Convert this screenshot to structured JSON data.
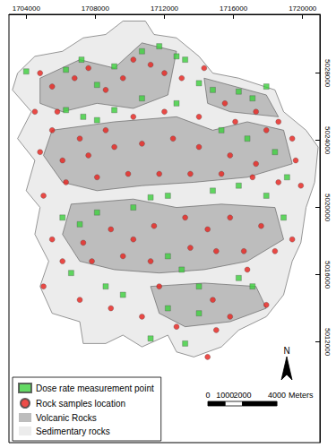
{
  "chart_data": {
    "type": "map",
    "xlim": [
      1703000,
      1721000
    ],
    "ylim": [
      5006000,
      5031500
    ],
    "xticks": [
      1704000,
      1708000,
      1712000,
      1716000,
      1720000
    ],
    "yticks": [
      5012000,
      5016000,
      5020000,
      5024000,
      5028000
    ],
    "grid": false,
    "legend": "bottom-left",
    "north_label": "N",
    "scale_bar": {
      "ticks": [
        0,
        1000,
        2000,
        4000
      ],
      "unit": "Meters"
    },
    "series": [
      {
        "name": "Sedimentary rocks",
        "type": "polygon",
        "color": "#ececec",
        "legend_order": 4,
        "polygons": [
          [
            [
              1703500,
              5028000
            ],
            [
              1704500,
              5029000
            ],
            [
              1706100,
              5029300
            ],
            [
              1707300,
              5030100
            ],
            [
              1708600,
              5030300
            ],
            [
              1709600,
              5031100
            ],
            [
              1710900,
              5031100
            ],
            [
              1711400,
              5030300
            ],
            [
              1712700,
              5030100
            ],
            [
              1714000,
              5029000
            ],
            [
              1714800,
              5028000
            ],
            [
              1716300,
              5027700
            ],
            [
              1718400,
              5027000
            ],
            [
              1718900,
              5025700
            ],
            [
              1720200,
              5024600
            ],
            [
              1720900,
              5023600
            ],
            [
              1720700,
              5021500
            ],
            [
              1720200,
              5020000
            ],
            [
              1719900,
              5017900
            ],
            [
              1719400,
              5016800
            ],
            [
              1718900,
              5014800
            ],
            [
              1717900,
              5013500
            ],
            [
              1716300,
              5012700
            ],
            [
              1715300,
              5011700
            ],
            [
              1713700,
              5011100
            ],
            [
              1712700,
              5011400
            ],
            [
              1712200,
              5012400
            ],
            [
              1710700,
              5011700
            ],
            [
              1709600,
              5012400
            ],
            [
              1708600,
              5011900
            ],
            [
              1707300,
              5011900
            ],
            [
              1707100,
              5013200
            ],
            [
              1705500,
              5013700
            ],
            [
              1704800,
              5015300
            ],
            [
              1705300,
              5016800
            ],
            [
              1704500,
              5018400
            ],
            [
              1704800,
              5020000
            ],
            [
              1704000,
              5021000
            ],
            [
              1704500,
              5022800
            ],
            [
              1703500,
              5024100
            ],
            [
              1704300,
              5025700
            ],
            [
              1703200,
              5027000
            ]
          ]
        ]
      },
      {
        "name": "Volcanic Rocks",
        "type": "polygon",
        "color": "#bdbdbd",
        "legend_order": 3,
        "polygons": [
          [
            [
              1704800,
              5027700
            ],
            [
              1707100,
              5028800
            ],
            [
              1709100,
              5028300
            ],
            [
              1710700,
              5029800
            ],
            [
              1712700,
              5029300
            ],
            [
              1712200,
              5026700
            ],
            [
              1710200,
              5025900
            ],
            [
              1708100,
              5026200
            ],
            [
              1706100,
              5025700
            ],
            [
              1704800,
              5026200
            ]
          ],
          [
            [
              1705500,
              5024600
            ],
            [
              1709100,
              5025100
            ],
            [
              1712700,
              5025400
            ],
            [
              1714800,
              5024600
            ],
            [
              1716800,
              5025100
            ],
            [
              1718900,
              5024600
            ],
            [
              1719400,
              5022600
            ],
            [
              1716800,
              5021800
            ],
            [
              1713700,
              5021500
            ],
            [
              1710700,
              5021300
            ],
            [
              1708100,
              5021000
            ],
            [
              1706100,
              5021500
            ],
            [
              1705000,
              5023100
            ]
          ],
          [
            [
              1706600,
              5020200
            ],
            [
              1710200,
              5020500
            ],
            [
              1712700,
              5020000
            ],
            [
              1715300,
              5020200
            ],
            [
              1718400,
              5020000
            ],
            [
              1718900,
              5018100
            ],
            [
              1716800,
              5016800
            ],
            [
              1714300,
              5016300
            ],
            [
              1711700,
              5016100
            ],
            [
              1709100,
              5016300
            ],
            [
              1707100,
              5016800
            ],
            [
              1706100,
              5018400
            ]
          ],
          [
            [
              1711200,
              5015300
            ],
            [
              1714300,
              5015500
            ],
            [
              1717300,
              5015300
            ],
            [
              1717900,
              5014000
            ],
            [
              1715800,
              5013200
            ],
            [
              1713200,
              5012900
            ],
            [
              1711700,
              5013700
            ]
          ],
          [
            [
              1714300,
              5027700
            ],
            [
              1717900,
              5026700
            ],
            [
              1718600,
              5025400
            ],
            [
              1715800,
              5025700
            ],
            [
              1714500,
              5026200
            ]
          ]
        ]
      },
      {
        "name": "Dose rate measurement point",
        "type": "scatter",
        "marker": "square",
        "color": "#3ccf3c",
        "legend_order": 1,
        "x": [
          1704000,
          1706300,
          1707200,
          1708100,
          1709100,
          1710700,
          1711700,
          1712700,
          1713200,
          1714000,
          1714800,
          1716300,
          1717100,
          1717900,
          1706300,
          1707300,
          1708100,
          1709100,
          1710700,
          1712700,
          1715300,
          1716800,
          1718400,
          1719100,
          1706100,
          1707100,
          1708100,
          1710200,
          1711200,
          1712200,
          1714800,
          1716300,
          1717900,
          1718900,
          1712200,
          1713000,
          1714000,
          1716300,
          1717100,
          1714000,
          1712200,
          1708600,
          1709600,
          1706600,
          1713200,
          1711200
        ],
        "y": [
          5028100,
          5028200,
          5028800,
          5027300,
          5028400,
          5029300,
          5029600,
          5029000,
          5028800,
          5027400,
          5027000,
          5026900,
          5026500,
          5027200,
          5025800,
          5025400,
          5025200,
          5025800,
          5026500,
          5026200,
          5024600,
          5024100,
          5023300,
          5021800,
          5019400,
          5019000,
          5019700,
          5020000,
          5020600,
          5020700,
          5021000,
          5021300,
          5020700,
          5019400,
          5017100,
          5016300,
          5015300,
          5015800,
          5015300,
          5013700,
          5014000,
          5015300,
          5014800,
          5016100,
          5011900,
          5012200
        ]
      },
      {
        "name": "Rock samples location",
        "type": "scatter",
        "marker": "circle",
        "color": "#e8201c",
        "legend_order": 2,
        "x": [
          1704800,
          1705500,
          1706800,
          1707600,
          1708600,
          1709600,
          1710200,
          1711200,
          1712000,
          1713000,
          1714300,
          1715500,
          1717300,
          1718600,
          1719400,
          1717900,
          1716100,
          1714000,
          1712000,
          1710200,
          1708600,
          1707100,
          1705500,
          1704800,
          1706100,
          1707600,
          1709100,
          1710700,
          1712500,
          1714000,
          1715800,
          1717300,
          1719600,
          1719900,
          1718600,
          1717100,
          1715300,
          1713500,
          1711700,
          1709900,
          1708100,
          1706300,
          1705000,
          1705500,
          1707300,
          1708900,
          1710200,
          1711400,
          1713200,
          1714500,
          1715800,
          1717600,
          1719400,
          1718400,
          1716600,
          1715000,
          1713500,
          1711200,
          1709600,
          1707800,
          1706100,
          1705000,
          1707100,
          1708900,
          1710700,
          1711700,
          1714800,
          1715800,
          1717900,
          1715000,
          1712700,
          1714500,
          1716800,
          1704500,
          1705800
        ],
        "y": [
          5028000,
          5027200,
          5027700,
          5028300,
          5027000,
          5027700,
          5028800,
          5028500,
          5028000,
          5027700,
          5028300,
          5026200,
          5025700,
          5025100,
          5024100,
          5024600,
          5025100,
          5025400,
          5025700,
          5025400,
          5024600,
          5024100,
          5024600,
          5023300,
          5022800,
          5023100,
          5023600,
          5023800,
          5024100,
          5023600,
          5023100,
          5022600,
          5022800,
          5021300,
          5021500,
          5021800,
          5022000,
          5022000,
          5022000,
          5022000,
          5021800,
          5021500,
          5020700,
          5018100,
          5017900,
          5018700,
          5018100,
          5018900,
          5019400,
          5018700,
          5019400,
          5018900,
          5018100,
          5017400,
          5017400,
          5017400,
          5017600,
          5016800,
          5017100,
          5016800,
          5016800,
          5015300,
          5014500,
          5014000,
          5013500,
          5015300,
          5014500,
          5013500,
          5014200,
          5012700,
          5012900,
          5011100,
          5016300,
          5025700,
          5025700
        ]
      }
    ]
  }
}
